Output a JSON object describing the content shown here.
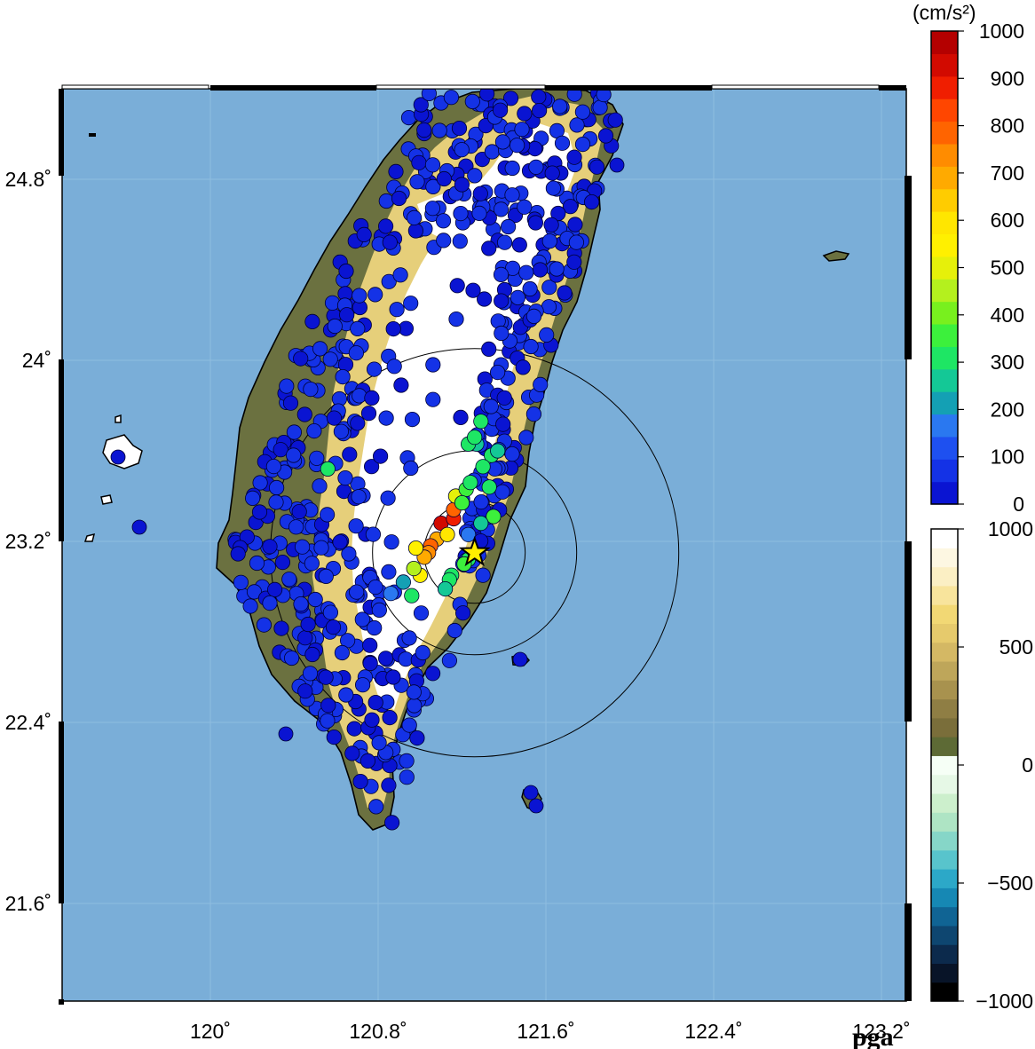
{
  "map": {
    "product_label": "pga",
    "longitude_ticks": [
      {
        "value": 120.0,
        "label": "120˚"
      },
      {
        "value": 120.8,
        "label": "120.8˚"
      },
      {
        "value": 121.6,
        "label": "121.6˚"
      },
      {
        "value": 122.4,
        "label": "122.4˚"
      },
      {
        "value": 123.2,
        "label": "123.2˚"
      }
    ],
    "latitude_ticks": [
      {
        "value": 21.6,
        "label": "21.6˚"
      },
      {
        "value": 22.4,
        "label": "22.4˚"
      },
      {
        "value": 23.2,
        "label": "23.2˚"
      },
      {
        "value": 24.0,
        "label": "24˚"
      },
      {
        "value": 24.8,
        "label": "24.8˚"
      }
    ],
    "ocean_color": "#7aaed8",
    "land_colors": {
      "lowland": "#6b7140",
      "foothill": "#e6cf7a",
      "mountain": "#ffffff"
    },
    "epicenter": {
      "lon": 121.26,
      "lat": 23.15,
      "marker": "yellow-star"
    },
    "distance_rings": [
      "ring-1",
      "ring-2",
      "ring-3"
    ]
  },
  "pga_colorbar": {
    "unit_label": "(cm/s²)",
    "ticks": [
      "1000",
      "900",
      "800",
      "700",
      "600",
      "500",
      "400",
      "300",
      "200",
      "100",
      "0"
    ],
    "colors": [
      "#0a14d2",
      "#1432e6",
      "#1e50f0",
      "#2a78f0",
      "#14a0b4",
      "#14c896",
      "#1ee664",
      "#3cf03c",
      "#78f01e",
      "#b4f01e",
      "#e6f00a",
      "#fff000",
      "#ffe600",
      "#ffcc00",
      "#ffaa00",
      "#ff8c00",
      "#ff6400",
      "#ff4600",
      "#f01e00",
      "#d20a00",
      "#b40000"
    ]
  },
  "elevation_colorbar": {
    "ticks": [
      "1000",
      "500",
      "0",
      "−500",
      "−1000"
    ],
    "colors": [
      "#000000",
      "#081428",
      "#0c2a4c",
      "#0e4670",
      "#106494",
      "#1688b4",
      "#2ca8c8",
      "#58c4cc",
      "#86d6c8",
      "#aee4c4",
      "#ccefcc",
      "#e6f8e6",
      "#f6fff6",
      "#5d6a35",
      "#7a6e3a",
      "#8f7e44",
      "#a8924e",
      "#bea65a",
      "#d4b864",
      "#e6ca6c",
      "#f2d874",
      "#f8e49c",
      "#fbefc4",
      "#fdf7e2",
      "#ffffff"
    ]
  },
  "stations": [
    {
      "lon": 121.1,
      "lat": 23.28,
      "pga": 960
    },
    {
      "lon": 121.16,
      "lat": 23.3,
      "pga": 900
    },
    {
      "lon": 121.16,
      "lat": 23.34,
      "pga": 820
    },
    {
      "lon": 121.08,
      "lat": 23.21,
      "pga": 740
    },
    {
      "lon": 121.05,
      "lat": 23.18,
      "pga": 800
    },
    {
      "lon": 121.04,
      "lat": 23.15,
      "pga": 780
    },
    {
      "lon": 121.02,
      "lat": 23.13,
      "pga": 720
    },
    {
      "lon": 120.98,
      "lat": 23.17,
      "pga": 560
    },
    {
      "lon": 121.0,
      "lat": 23.05,
      "pga": 560
    },
    {
      "lon": 120.97,
      "lat": 23.08,
      "pga": 460
    },
    {
      "lon": 121.13,
      "lat": 23.23,
      "pga": 600
    },
    {
      "lon": 121.17,
      "lat": 23.4,
      "pga": 540
    },
    {
      "lon": 121.22,
      "lat": 23.43,
      "pga": 360
    },
    {
      "lon": 121.24,
      "lat": 23.46,
      "pga": 340
    },
    {
      "lon": 121.2,
      "lat": 23.37,
      "pga": 380
    },
    {
      "lon": 121.33,
      "lat": 23.44,
      "pga": 300
    },
    {
      "lon": 121.35,
      "lat": 23.31,
      "pga": 380
    },
    {
      "lon": 121.29,
      "lat": 23.28,
      "pga": 260
    },
    {
      "lon": 121.23,
      "lat": 23.23,
      "pga": 180
    },
    {
      "lon": 121.23,
      "lat": 23.12,
      "pga": 330
    },
    {
      "lon": 121.21,
      "lat": 23.1,
      "pga": 360
    },
    {
      "lon": 121.15,
      "lat": 23.05,
      "pga": 320
    },
    {
      "lon": 121.14,
      "lat": 23.03,
      "pga": 300
    },
    {
      "lon": 121.12,
      "lat": 22.99,
      "pga": 260
    },
    {
      "lon": 120.92,
      "lat": 23.02,
      "pga": 200
    },
    {
      "lon": 120.86,
      "lat": 22.97,
      "pga": 180
    },
    {
      "lon": 120.96,
      "lat": 22.96,
      "pga": 320
    },
    {
      "lon": 121.29,
      "lat": 23.73,
      "pga": 300
    },
    {
      "lon": 121.27,
      "lat": 23.63,
      "pga": 290
    },
    {
      "lon": 121.23,
      "lat": 23.63,
      "pga": 340
    },
    {
      "lon": 121.26,
      "lat": 23.66,
      "pga": 320
    },
    {
      "lon": 121.34,
      "lat": 23.58,
      "pga": 300
    },
    {
      "lon": 121.3,
      "lat": 23.53,
      "pga": 340
    },
    {
      "lon": 121.37,
      "lat": 23.6,
      "pga": 290
    },
    {
      "lon": 120.56,
      "lat": 23.52,
      "pga": 300
    },
    {
      "lon": 121.3,
      "lat": 23.05,
      "pga": 60
    }
  ]
}
